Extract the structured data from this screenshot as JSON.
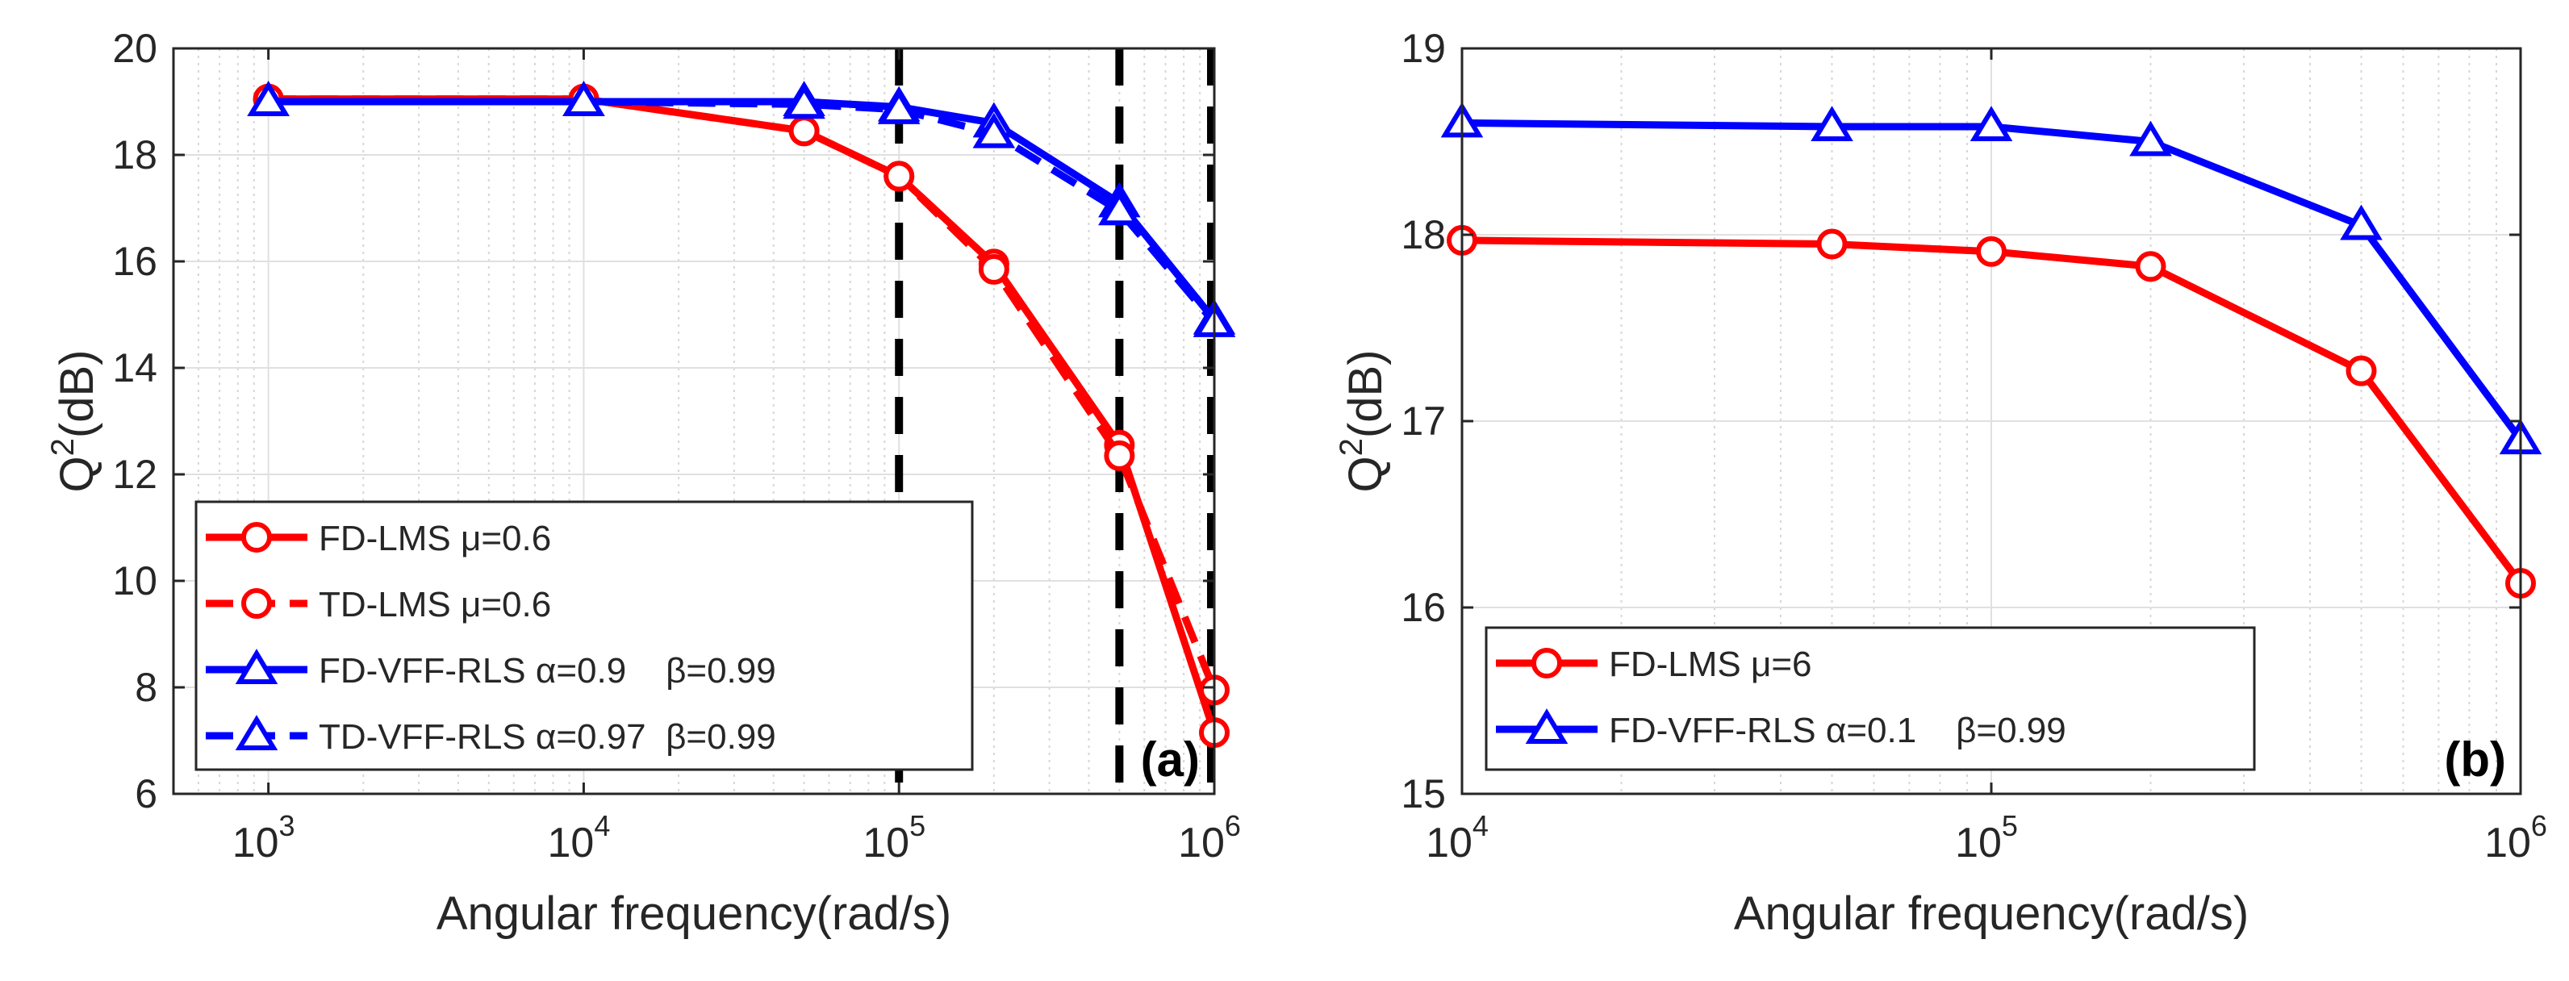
{
  "chart_data": [
    {
      "type": "line",
      "panel_label": "(a)",
      "xlabel": "Angular frequency(rad/s)",
      "ylabel": "Q2(dB)",
      "xscale": "log",
      "xlim": [
        500,
        1000000
      ],
      "ylim": [
        6,
        20
      ],
      "xticks": [
        1000,
        10000,
        100000,
        1000000
      ],
      "xtick_labels": [
        {
          "base": "10",
          "exp": "3"
        },
        {
          "base": "10",
          "exp": "4"
        },
        {
          "base": "10",
          "exp": "5"
        },
        {
          "base": "10",
          "exp": "6"
        }
      ],
      "yticks": [
        6,
        8,
        10,
        12,
        14,
        16,
        18,
        20
      ],
      "ytick_labels": [
        "6",
        "8",
        "10",
        "12",
        "14",
        "16",
        "18",
        "20"
      ],
      "grid": true,
      "legend_position": "bottom-left",
      "vlines": [
        100000,
        500000,
        1000000
      ],
      "series": [
        {
          "name": "FD-LMS μ=0.6",
          "color": "#ff0000",
          "marker": "circle",
          "linestyle": "solid",
          "x": [
            1000,
            10000,
            50000,
            100000,
            200000,
            500000,
            1000000
          ],
          "y": [
            19.05,
            19.05,
            18.45,
            17.6,
            15.95,
            12.55,
            7.15
          ]
        },
        {
          "name": "TD-LMS μ=0.6",
          "color": "#ff0000",
          "marker": "circle",
          "linestyle": "dashed",
          "x": [
            1000,
            10000,
            50000,
            100000,
            200000,
            500000,
            1000000
          ],
          "y": [
            19.05,
            19.05,
            18.45,
            17.6,
            15.85,
            12.35,
            7.95
          ]
        },
        {
          "name": "FD-VFF-RLS α=0.9    β=0.99",
          "color": "#0000ff",
          "marker": "triangle",
          "linestyle": "solid",
          "x": [
            1000,
            10000,
            50000,
            100000,
            200000,
            500000,
            1000000
          ],
          "y": [
            19.0,
            19.0,
            19.0,
            18.9,
            18.6,
            17.1,
            14.9
          ]
        },
        {
          "name": "TD-VFF-RLS α=0.97  β=0.99",
          "color": "#0000ff",
          "marker": "triangle",
          "linestyle": "dashed",
          "x": [
            1000,
            10000,
            50000,
            100000,
            200000,
            500000,
            1000000
          ],
          "y": [
            19.0,
            19.0,
            18.95,
            18.85,
            18.4,
            16.95,
            14.85
          ]
        }
      ]
    },
    {
      "type": "line",
      "panel_label": "(b)",
      "xlabel": "Angular frequency(rad/s)",
      "ylabel": "Q2(dB)",
      "xscale": "log",
      "xlim": [
        10000,
        1000000
      ],
      "ylim": [
        15,
        19
      ],
      "xticks": [
        10000,
        100000,
        1000000
      ],
      "xtick_labels": [
        {
          "base": "10",
          "exp": "4"
        },
        {
          "base": "10",
          "exp": "5"
        },
        {
          "base": "10",
          "exp": "6"
        }
      ],
      "yticks": [
        15,
        16,
        17,
        18,
        19
      ],
      "ytick_labels": [
        "15",
        "16",
        "17",
        "18",
        "19"
      ],
      "grid": true,
      "legend_position": "bottom-left",
      "series": [
        {
          "name": "FD-LMS μ=6",
          "color": "#ff0000",
          "marker": "circle",
          "linestyle": "solid",
          "x": [
            10000,
            50000,
            100000,
            200000,
            500000,
            1000000
          ],
          "y": [
            17.97,
            17.95,
            17.91,
            17.83,
            17.27,
            16.13
          ]
        },
        {
          "name": "FD-VFF-RLS α=0.1    β=0.99",
          "color": "#0000ff",
          "marker": "triangle",
          "linestyle": "solid",
          "x": [
            10000,
            50000,
            100000,
            200000,
            500000,
            1000000
          ],
          "y": [
            18.6,
            18.58,
            18.58,
            18.5,
            18.05,
            16.9
          ]
        }
      ]
    }
  ]
}
